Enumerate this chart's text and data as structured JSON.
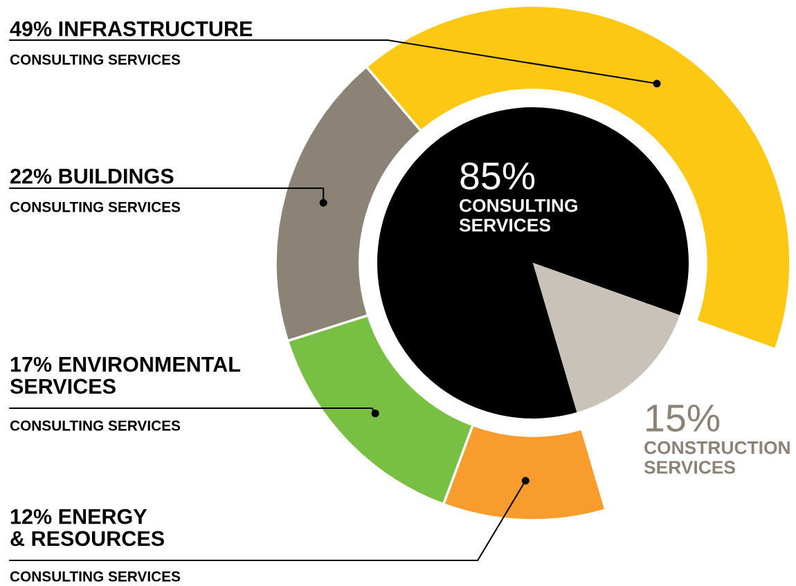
{
  "chart_data": {
    "type": "pie",
    "categories": [
      "CONSULTING\nSERVICES",
      "CONSTRUCTION\nSERVICES",
      "INFRASTRUCTURE",
      "BUILDINGS",
      "ENVIRONMENTAL\nSERVICES",
      "ENERGY\n& RESOURCES"
    ],
    "series": [
      {
        "values": [
          85,
          15,
          null,
          null,
          null,
          null
        ],
        "colors": [
          "#000000",
          "#c9c2b8",
          null,
          null,
          null,
          null
        ],
        "value_labels": [
          "85%",
          "15%",
          null,
          null,
          null,
          null
        ]
      },
      {
        "type": "donut",
        "values": [
          null,
          null,
          49,
          22,
          17,
          12
        ],
        "colors": [
          null,
          null,
          "#fdc813",
          "#8c8275",
          "#77c043",
          "#f89c2e"
        ],
        "value_labels": [
          null,
          null,
          "49%",
          "22%",
          "17%",
          "12%"
        ]
      }
    ],
    "annotations": [
      "CONSULTING SERVICES",
      "CONSULTING SERVICES",
      "CONSULTING SERVICES",
      "CONSULTING SERVICES"
    ]
  }
}
